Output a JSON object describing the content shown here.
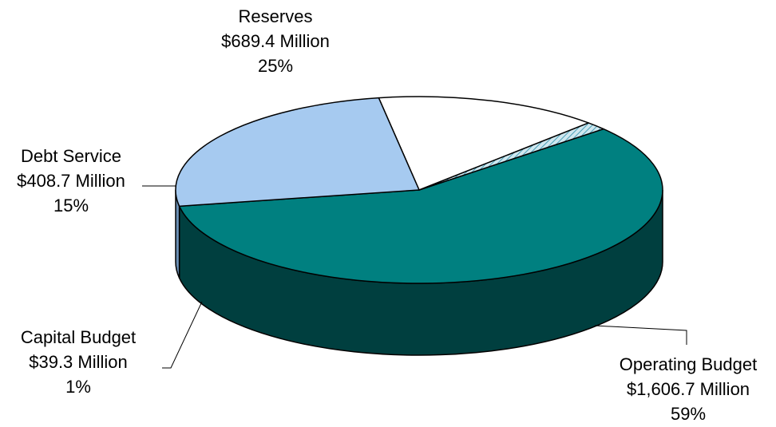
{
  "chart_data": {
    "type": "pie",
    "style": "3d-exploded-none",
    "slices": [
      {
        "name": "Operating Budget",
        "amount": "$1,606.7 Million",
        "value": 1606.7,
        "percent": "59%",
        "color": "#008080",
        "side_color": "#003f3f"
      },
      {
        "name": "Capital Budget",
        "amount": "$39.3 Million",
        "value": 39.3,
        "percent": "1%",
        "color": "#cfe7ef",
        "side_color": "#707070",
        "pattern": "diagonal-hatch"
      },
      {
        "name": "Debt Service",
        "amount": "$408.7 Million",
        "value": 408.7,
        "percent": "15%",
        "color": "#ffffff",
        "side_color": "#808080"
      },
      {
        "name": "Reserves",
        "amount": "$689.4 Million",
        "value": 689.4,
        "percent": "25%",
        "color": "#a6caf0",
        "side_color": "#6b8fb5"
      }
    ]
  }
}
